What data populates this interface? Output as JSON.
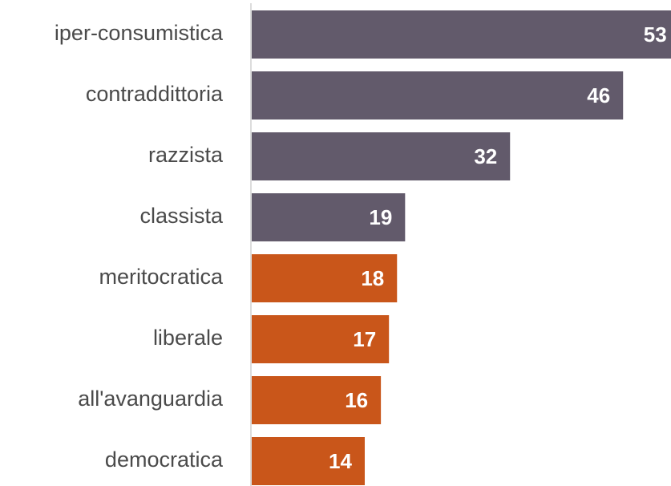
{
  "chart_data": {
    "type": "bar",
    "orientation": "horizontal",
    "categories": [
      "iper-consumistica",
      "contraddittoria",
      "razzista",
      "classista",
      "meritocratica",
      "liberale",
      "all'avanguardia",
      "democratica"
    ],
    "values": [
      53,
      46,
      32,
      19,
      18,
      17,
      16,
      14
    ],
    "colors": [
      "#625a6b",
      "#625a6b",
      "#625a6b",
      "#625a6b",
      "#c9561a",
      "#c9561a",
      "#c9561a",
      "#c9561a"
    ]
  }
}
